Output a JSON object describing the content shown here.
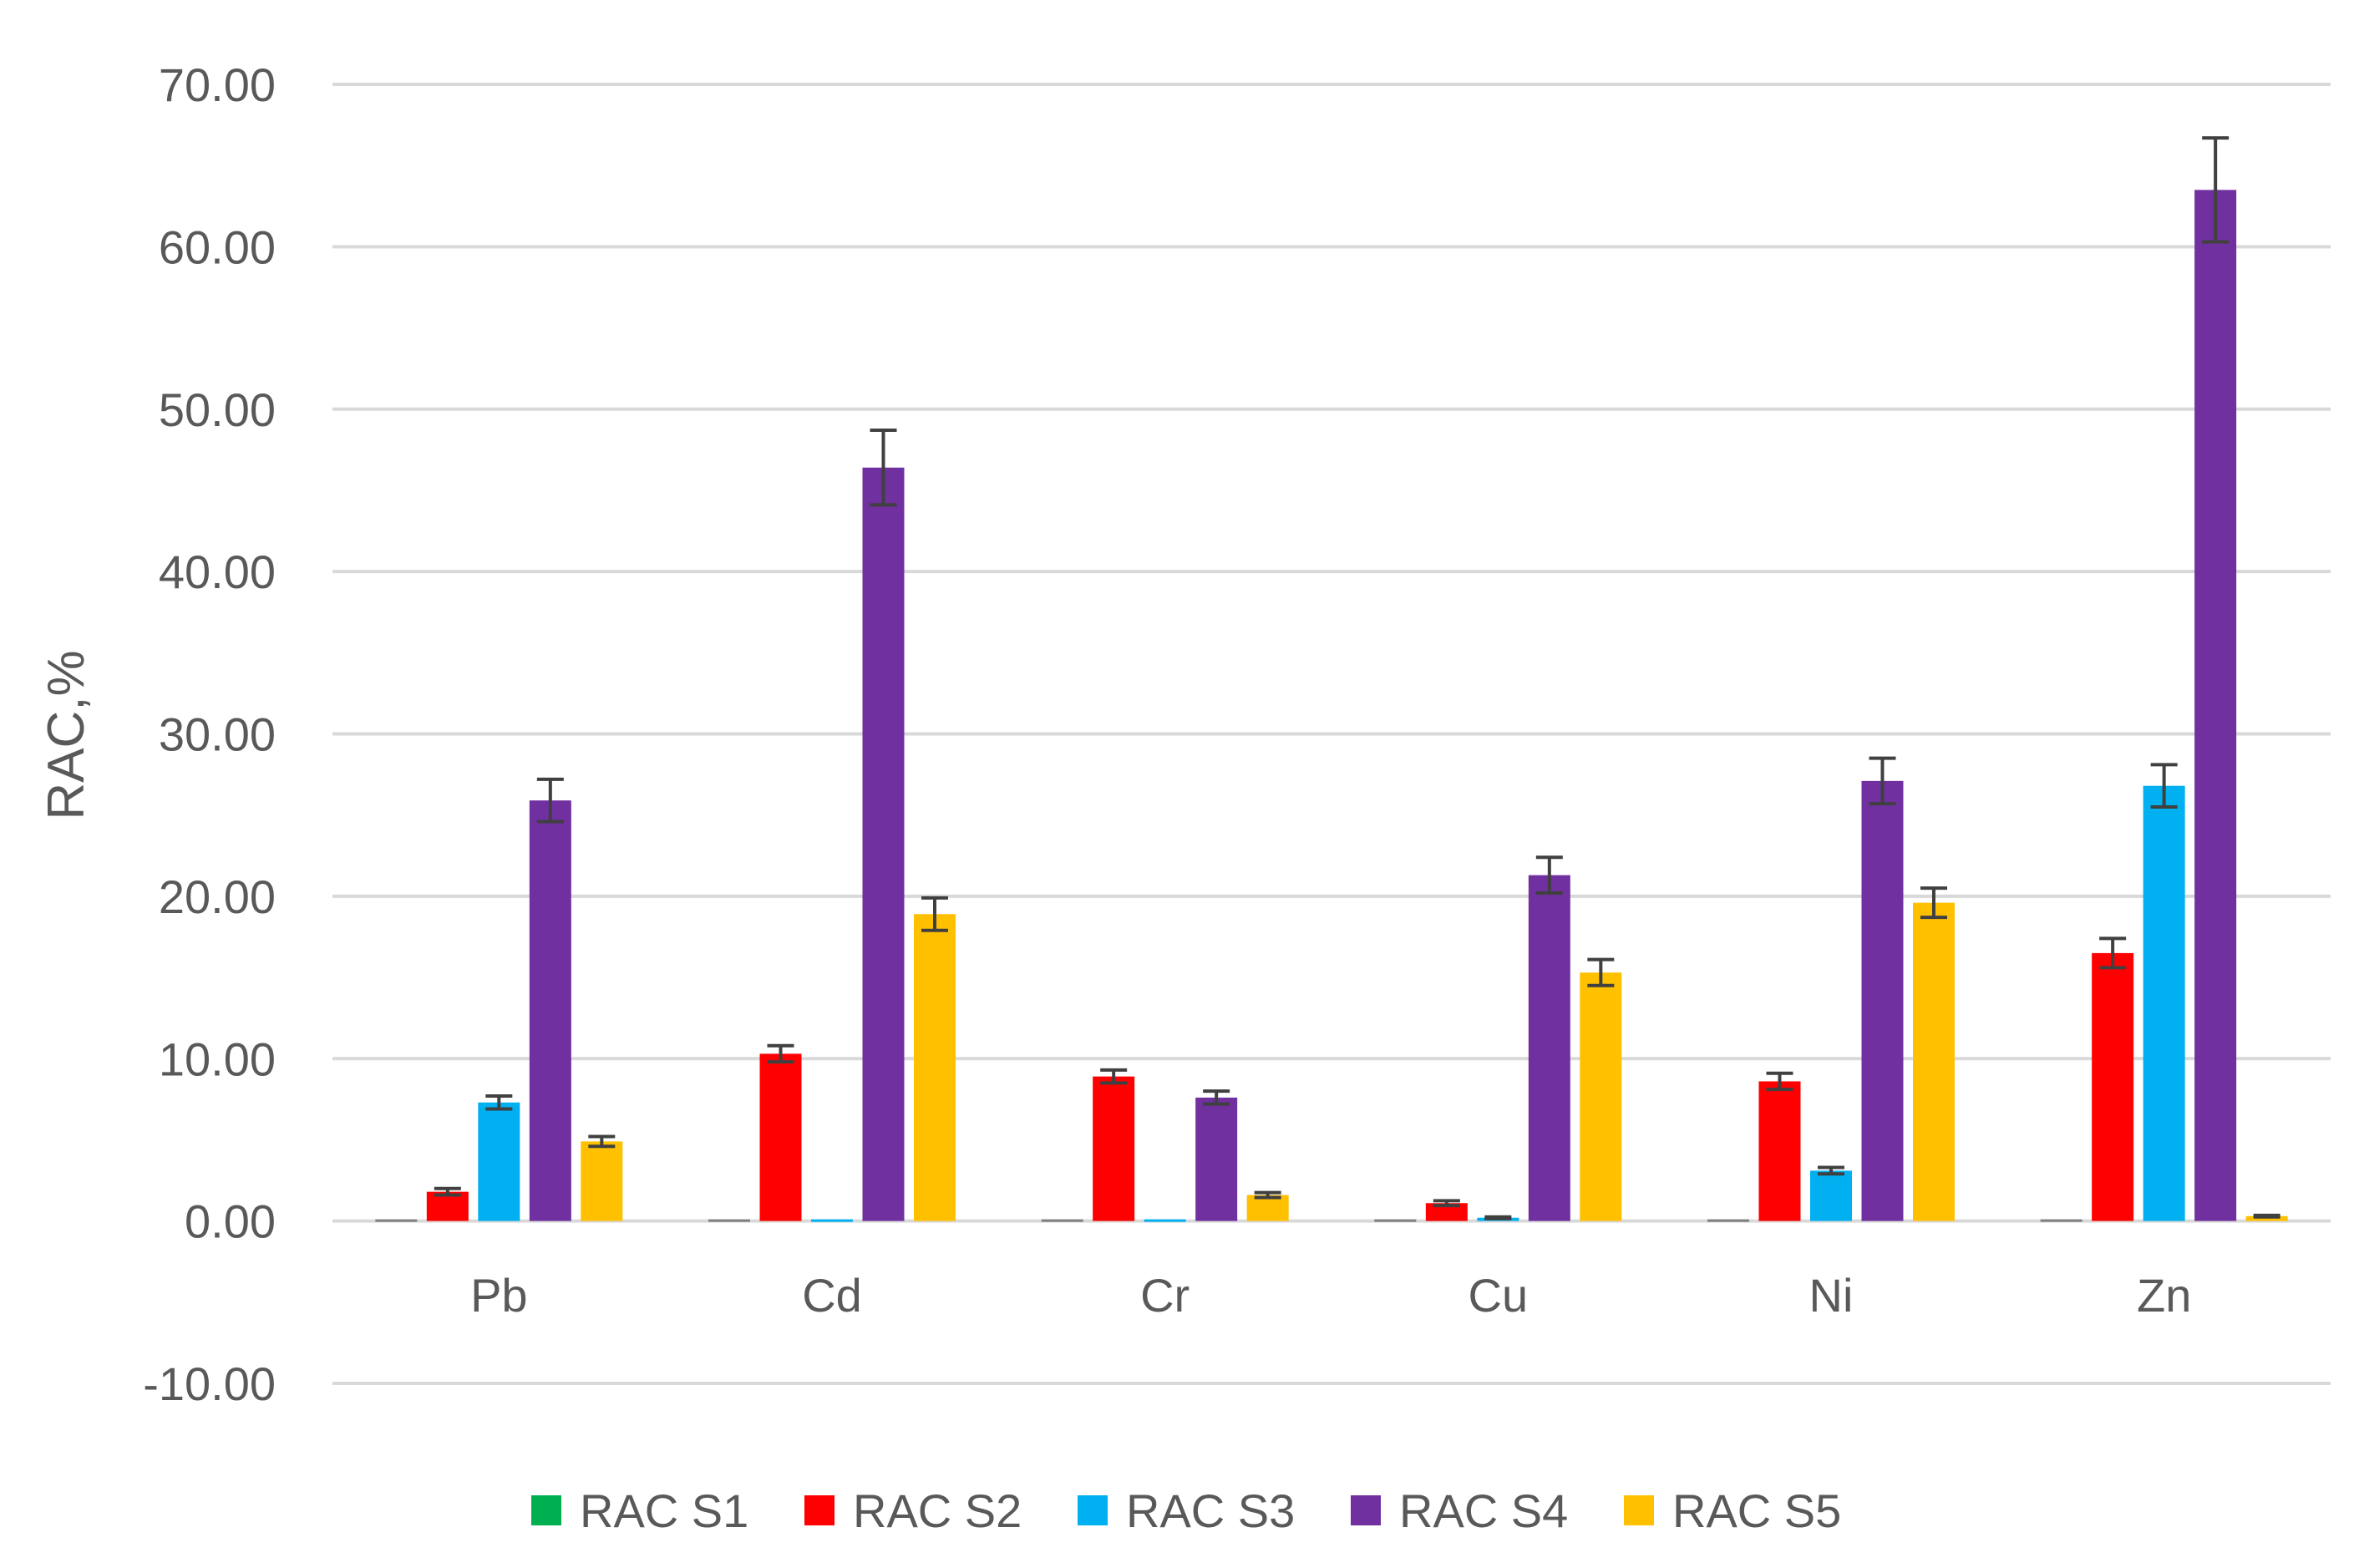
{
  "chart_data": {
    "type": "bar",
    "title": "",
    "xlabel": "",
    "ylabel": "RAC,%",
    "ylim": [
      -10,
      70
    ],
    "ytick_step": 10,
    "ytick_labels": [
      "-10.00",
      "0.00",
      "10.00",
      "20.00",
      "30.00",
      "40.00",
      "50.00",
      "60.00",
      "70.00"
    ],
    "grid": true,
    "legend_position": "bottom",
    "categories": [
      "Pb",
      "Cd",
      "Cr",
      "Cu",
      "Ni",
      "Zn"
    ],
    "series": [
      {
        "name": "RAC S1",
        "color": "#00B050",
        "values": [
          0.1,
          0.1,
          0.1,
          0.1,
          0.1,
          0.1
        ],
        "errors": [
          0.0,
          0.0,
          0.0,
          0.0,
          0.0,
          0.0
        ]
      },
      {
        "name": "RAC S2",
        "color": "#FF0000",
        "values": [
          1.8,
          10.3,
          8.9,
          1.1,
          8.6,
          16.5
        ],
        "errors": [
          0.2,
          0.5,
          0.4,
          0.15,
          0.5,
          0.9
        ]
      },
      {
        "name": "RAC S3",
        "color": "#00B0F0",
        "values": [
          7.3,
          0.0,
          0.0,
          0.2,
          3.1,
          26.8
        ],
        "errors": [
          0.4,
          0.0,
          0.0,
          0.05,
          0.2,
          1.3
        ]
      },
      {
        "name": "RAC S4",
        "color": "#7030A0",
        "values": [
          25.9,
          46.4,
          7.6,
          21.3,
          27.1,
          63.5
        ],
        "errors": [
          1.3,
          2.3,
          0.4,
          1.1,
          1.4,
          3.2
        ]
      },
      {
        "name": "RAC S5",
        "color": "#FFC000",
        "values": [
          4.9,
          18.9,
          1.6,
          15.3,
          19.6,
          0.3
        ],
        "errors": [
          0.3,
          1.0,
          0.15,
          0.8,
          0.9,
          0.05
        ]
      }
    ]
  }
}
